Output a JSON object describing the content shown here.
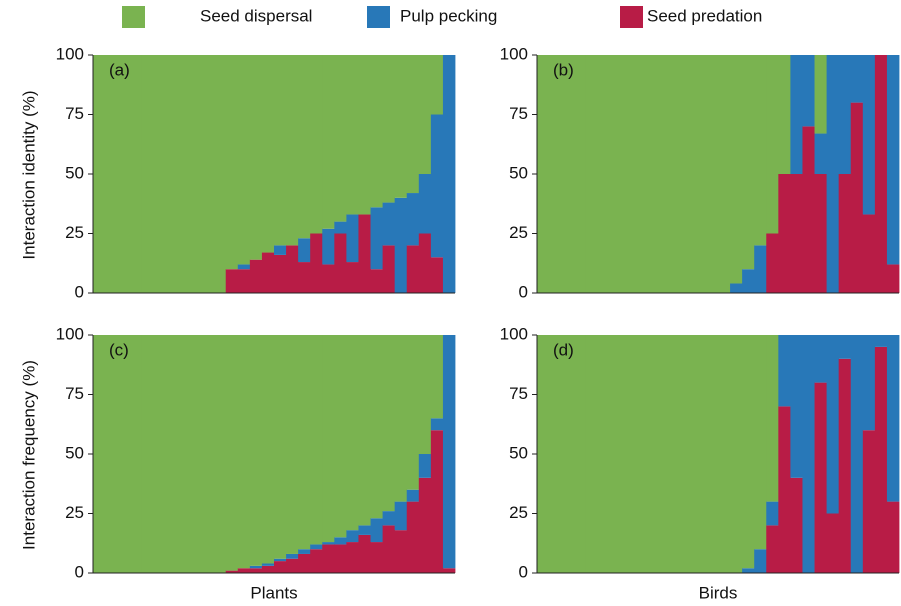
{
  "legend": [
    {
      "name": "Seed dispersal",
      "color": "#7ab350"
    },
    {
      "name": "Pulp pecking",
      "color": "#2878b8"
    },
    {
      "name": "Seed predation",
      "color": "#b81c46"
    }
  ],
  "chart_data": [
    {
      "type": "bar",
      "stacked": true,
      "annotation": "(a)",
      "ylabel": "Interaction identity (%)",
      "ylim": [
        0,
        100
      ],
      "yticks": [
        0,
        25,
        50,
        75,
        100
      ],
      "series": [
        {
          "values": [
            100,
            100,
            100,
            100,
            100,
            100,
            100,
            100,
            100,
            100,
            100,
            90,
            88,
            86,
            83,
            80,
            80,
            77,
            75,
            73,
            70,
            67,
            67,
            64,
            62,
            60,
            58,
            50,
            25,
            0
          ]
        },
        {
          "values": [
            0,
            0,
            0,
            0,
            0,
            0,
            0,
            0,
            0,
            0,
            0,
            0,
            2,
            0,
            0,
            4,
            0,
            10,
            0,
            15,
            5,
            20,
            0,
            26,
            18,
            40,
            22,
            25,
            60,
            100
          ]
        },
        {
          "values": [
            0,
            0,
            0,
            0,
            0,
            0,
            0,
            0,
            0,
            0,
            0,
            10,
            10,
            14,
            17,
            16,
            20,
            13,
            25,
            12,
            25,
            13,
            33,
            10,
            20,
            0,
            20,
            25,
            15,
            0
          ]
        }
      ]
    },
    {
      "type": "bar",
      "stacked": true,
      "annotation": "(b)",
      "ylim": [
        0,
        100
      ],
      "yticks": [
        0,
        25,
        50,
        75,
        100
      ],
      "series": [
        {
          "values": [
            100,
            100,
            100,
            100,
            100,
            100,
            100,
            100,
            100,
            100,
            100,
            100,
            100,
            100,
            100,
            100,
            96,
            90,
            80,
            75,
            50,
            0,
            0,
            33,
            0,
            0,
            0,
            0,
            0,
            0
          ]
        },
        {
          "values": [
            0,
            0,
            0,
            0,
            0,
            0,
            0,
            0,
            0,
            0,
            0,
            0,
            0,
            0,
            0,
            0,
            4,
            10,
            20,
            0,
            0,
            50,
            30,
            17,
            100,
            50,
            20,
            67,
            0,
            88
          ]
        },
        {
          "values": [
            0,
            0,
            0,
            0,
            0,
            0,
            0,
            0,
            0,
            0,
            0,
            0,
            0,
            0,
            0,
            0,
            0,
            0,
            0,
            25,
            50,
            50,
            70,
            50,
            0,
            50,
            80,
            33,
            100,
            12
          ]
        }
      ]
    },
    {
      "type": "bar",
      "stacked": true,
      "annotation": "(c)",
      "ylabel": "Interaction frequency (%)",
      "xlabel": "Plants",
      "ylim": [
        0,
        100
      ],
      "yticks": [
        0,
        25,
        50,
        75,
        100
      ],
      "series": [
        {
          "values": [
            100,
            100,
            100,
            100,
            100,
            100,
            100,
            100,
            100,
            100,
            100,
            99,
            98,
            97,
            96,
            94,
            92,
            90,
            88,
            87,
            85,
            82,
            80,
            77,
            74,
            70,
            65,
            50,
            35,
            0
          ]
        },
        {
          "values": [
            0,
            0,
            0,
            0,
            0,
            0,
            0,
            0,
            0,
            0,
            0,
            0,
            0,
            1,
            1,
            1,
            2,
            2,
            2,
            1,
            3,
            5,
            4,
            10,
            6,
            12,
            5,
            10,
            5,
            98
          ]
        },
        {
          "values": [
            0,
            0,
            0,
            0,
            0,
            0,
            0,
            0,
            0,
            0,
            0,
            1,
            2,
            2,
            3,
            5,
            6,
            8,
            10,
            12,
            12,
            13,
            16,
            13,
            20,
            18,
            30,
            40,
            60,
            2
          ]
        }
      ]
    },
    {
      "type": "bar",
      "stacked": true,
      "annotation": "(d)",
      "xlabel": "Birds",
      "ylim": [
        0,
        100
      ],
      "yticks": [
        0,
        25,
        50,
        75,
        100
      ],
      "series": [
        {
          "values": [
            100,
            100,
            100,
            100,
            100,
            100,
            100,
            100,
            100,
            100,
            100,
            100,
            100,
            100,
            100,
            100,
            100,
            98,
            90,
            70,
            0,
            0,
            0,
            0,
            0,
            0,
            0,
            0,
            0,
            0
          ]
        },
        {
          "values": [
            0,
            0,
            0,
            0,
            0,
            0,
            0,
            0,
            0,
            0,
            0,
            0,
            0,
            0,
            0,
            0,
            0,
            2,
            10,
            10,
            30,
            60,
            100,
            20,
            75,
            10,
            100,
            40,
            5,
            70
          ]
        },
        {
          "values": [
            0,
            0,
            0,
            0,
            0,
            0,
            0,
            0,
            0,
            0,
            0,
            0,
            0,
            0,
            0,
            0,
            0,
            0,
            0,
            20,
            70,
            40,
            0,
            80,
            25,
            90,
            0,
            60,
            95,
            30
          ]
        }
      ]
    }
  ]
}
